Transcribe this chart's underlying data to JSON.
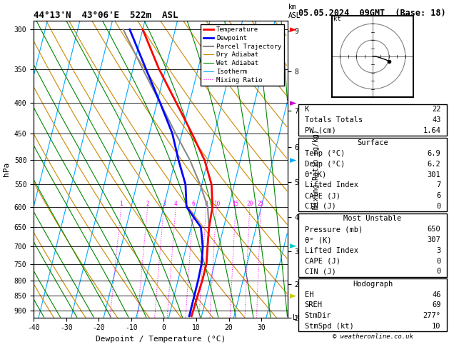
{
  "title_left": "44°13'N  43°06'E  522m  ASL",
  "title_right": "05.05.2024  09GMT  (Base: 18)",
  "xlabel": "Dewpoint / Temperature (°C)",
  "ylabel_left": "hPa",
  "copyright": "© weatheronline.co.uk",
  "pressure_levels": [
    300,
    350,
    400,
    450,
    500,
    550,
    600,
    650,
    700,
    750,
    800,
    850,
    900
  ],
  "xlim": [
    -40,
    38
  ],
  "skew": 45,
  "temp_profile": {
    "pressure": [
      920,
      900,
      850,
      800,
      750,
      700,
      650,
      600,
      550,
      500,
      450,
      400,
      350,
      300
    ],
    "temp": [
      6.9,
      7.0,
      7.2,
      7.5,
      7.5,
      6.5,
      5.5,
      5.0,
      3.0,
      -1.0,
      -7.0,
      -14.0,
      -22.0,
      -30.0
    ]
  },
  "dewpoint_profile": {
    "pressure": [
      920,
      900,
      850,
      800,
      750,
      700,
      650,
      600,
      550,
      500,
      450,
      400,
      350,
      300
    ],
    "temp": [
      6.2,
      6.2,
      6.2,
      6.2,
      6.0,
      5.0,
      3.0,
      -3.0,
      -5.0,
      -9.0,
      -13.0,
      -19.0,
      -26.0,
      -34.0
    ]
  },
  "parcel_profile": {
    "pressure": [
      920,
      900,
      850,
      800,
      750,
      700,
      650,
      600,
      550,
      500,
      450,
      400,
      350,
      300
    ],
    "temp": [
      6.9,
      7.0,
      7.2,
      7.5,
      7.5,
      6.5,
      5.5,
      3.5,
      -0.5,
      -5.5,
      -12.0,
      -19.0,
      -27.0,
      -36.0
    ]
  },
  "mixing_ratios": [
    1,
    2,
    3,
    4,
    6,
    8,
    10,
    15,
    20,
    25
  ],
  "colors": {
    "temperature": "#ff0000",
    "dewpoint": "#0000ff",
    "parcel": "#888888",
    "dry_adiabat": "#cc8800",
    "wet_adiabat": "#008800",
    "isotherm": "#00aaff",
    "mixing_ratio": "#ff00ff",
    "background": "#ffffff"
  },
  "stats": {
    "K": 22,
    "Totals_Totals": 43,
    "PW_cm": 1.64,
    "Surface_Temp": 6.9,
    "Surface_Dewp": 6.2,
    "Surface_ThetaE": 301,
    "Surface_LiftedIndex": 7,
    "Surface_CAPE": 6,
    "Surface_CIN": 0,
    "MU_Pressure": 650,
    "MU_ThetaE": 307,
    "MU_LiftedIndex": 3,
    "MU_CAPE": 0,
    "MU_CIN": 0,
    "Hodo_EH": 46,
    "Hodo_SREH": 69,
    "Hodo_StmDir": 277,
    "Hodo_StmSpd": 10
  },
  "km_tick_pressures": [
    302,
    355,
    414,
    479,
    550,
    632,
    724,
    827,
    943
  ],
  "km_tick_labels": [
    "9",
    "8",
    "7",
    "6",
    "5",
    "4",
    "3",
    "2",
    "1"
  ],
  "lcl_pressure": 920,
  "wind_barb_data": {
    "pressures": [
      300,
      400,
      500,
      700,
      850
    ],
    "colors": [
      "#ff0000",
      "#cc00cc",
      "#00aaff",
      "#00cccc",
      "#cccc00"
    ]
  },
  "figsize": [
    6.29,
    4.86
  ],
  "dpi": 100
}
